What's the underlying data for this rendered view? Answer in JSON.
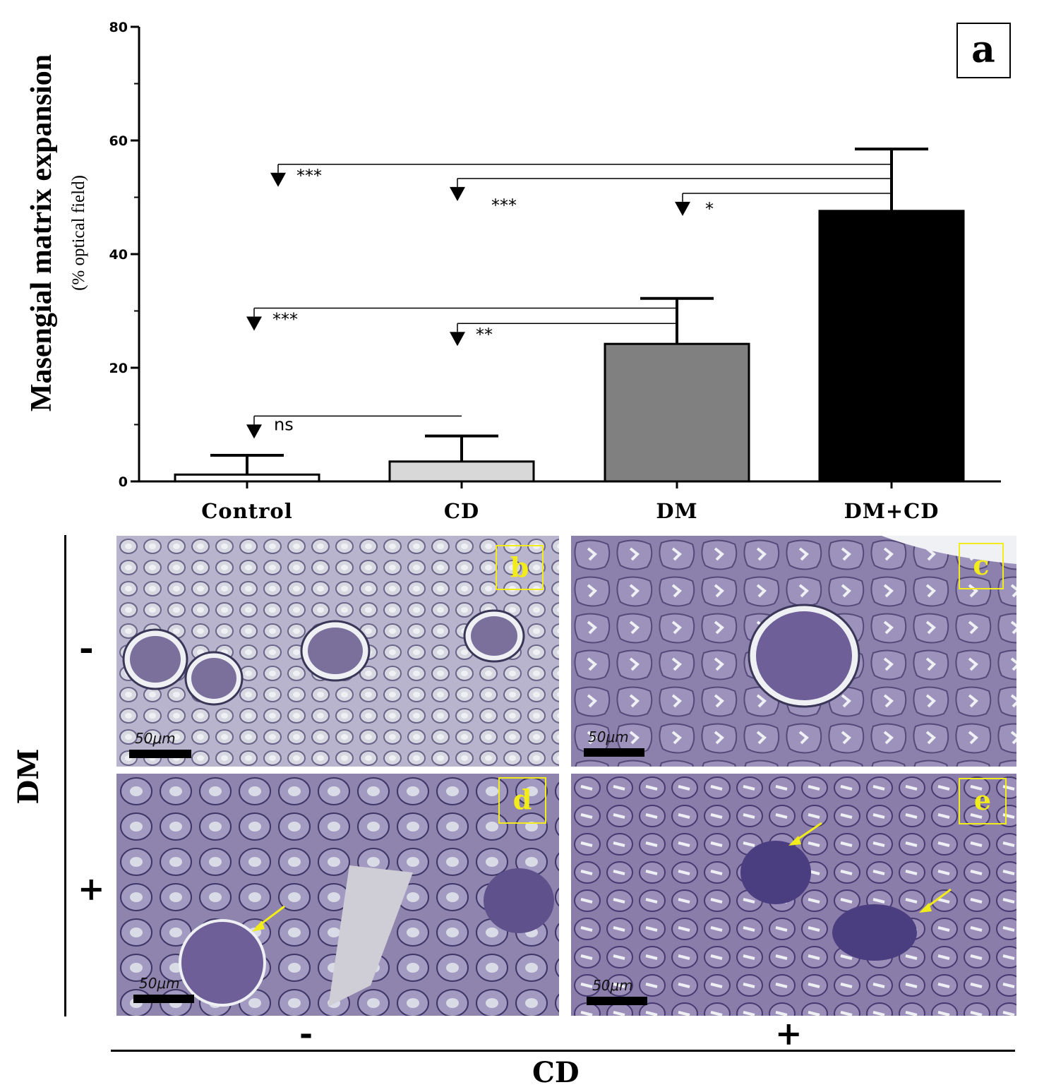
{
  "chart_data": {
    "type": "bar",
    "panel_label": "a",
    "categories": [
      "Control",
      "CD",
      "DM",
      "DM+CD"
    ],
    "values": [
      1.2,
      3.5,
      24.2,
      47.6
    ],
    "error_upper": [
      4.6,
      8.0,
      32.2,
      58.5
    ],
    "bar_colors": [
      "#ffffff",
      "#d8d8d8",
      "#808080",
      "#000000"
    ],
    "ylabel": "Masengial matrix expansion",
    "ylabel_sub": "(% optical field)",
    "xlabel": "",
    "ylim": [
      0,
      80
    ],
    "yticks": [
      "0",
      "20",
      "40",
      "60",
      "80"
    ],
    "grid": false,
    "comparisons": [
      {
        "from": "Control",
        "to": "CD",
        "label": "ns",
        "level": 11.5
      },
      {
        "from": "Control",
        "to": "DM",
        "label": "***",
        "level": 30.5
      },
      {
        "from": "CD",
        "to": "DM",
        "label": "**",
        "level": 27.8
      },
      {
        "from": "Control",
        "to": "DM+CD",
        "label": "***",
        "level": 55.8
      },
      {
        "from": "CD",
        "to": "DM+CD",
        "label": "***",
        "level": 53.3
      },
      {
        "from": "DM",
        "to": "DM+CD",
        "label": "*",
        "level": 50.7
      }
    ]
  },
  "micrographs": {
    "panels": [
      {
        "label": "b",
        "scale": "50μm"
      },
      {
        "label": "c",
        "scale": "50μm"
      },
      {
        "label": "d",
        "scale": "50μm"
      },
      {
        "label": "e",
        "scale": "50μm"
      }
    ],
    "row_axis_title": "DM",
    "row_signs": [
      "-",
      "+"
    ],
    "col_axis_title": "CD",
    "col_signs": [
      "-",
      "+"
    ]
  }
}
